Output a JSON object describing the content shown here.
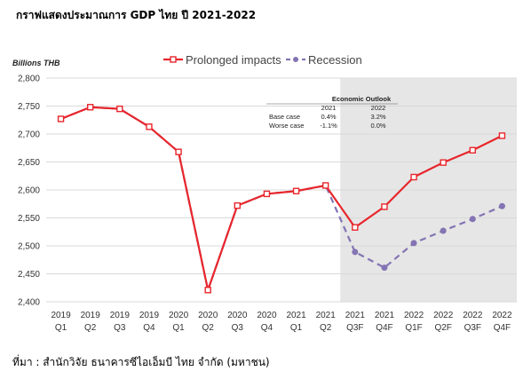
{
  "title": "กราฟแสดงประมาณการ GDP ไทย ปี 2021-2022",
  "source": "ที่มา : สำนักวิจัย ธนาคารซีไอเอ็มบี ไทย จำกัด (มหาชน)",
  "chart_data": {
    "type": "line",
    "ylabel": "Billions THB",
    "xlabel": "",
    "ylim": [
      2400,
      2800
    ],
    "yticks": [
      2400,
      2450,
      2500,
      2550,
      2600,
      2650,
      2700,
      2750,
      2800
    ],
    "ytick_labels": [
      "2,400",
      "2,450",
      "2,500",
      "2,550",
      "2,600",
      "2,650",
      "2,700",
      "2,750",
      "2,800"
    ],
    "grid": "horizontal",
    "legend_position": "top-right",
    "categories": [
      [
        "2019",
        "Q1"
      ],
      [
        "2019",
        "Q2"
      ],
      [
        "2019",
        "Q3"
      ],
      [
        "2019",
        "Q4"
      ],
      [
        "2020",
        "Q1"
      ],
      [
        "2020",
        "Q2"
      ],
      [
        "2020",
        "Q3"
      ],
      [
        "2020",
        "Q4"
      ],
      [
        "2021",
        "Q1"
      ],
      [
        "2021",
        "Q2"
      ],
      [
        "2021",
        "Q3F"
      ],
      [
        "2021",
        "Q4F"
      ],
      [
        "2022",
        "Q1F"
      ],
      [
        "2022",
        "Q2F"
      ],
      [
        "2022",
        "Q3F"
      ],
      [
        "2022",
        "Q4F"
      ]
    ],
    "forecast_region": {
      "from_category": "2021 Q3F",
      "to_category": "2022 Q4F"
    },
    "series": [
      {
        "name": "Prolonged impacts",
        "color": "#e8262c",
        "style": "solid",
        "marker": "square",
        "values": [
          2727,
          2748,
          2745,
          2713,
          2668,
          2421,
          2572,
          2593,
          2598,
          2608,
          2533,
          2570,
          2623,
          2649,
          2671,
          2697
        ]
      },
      {
        "name": "Recession",
        "color": "#8474b3",
        "style": "dashed",
        "marker": "circle",
        "values": [
          2727,
          2748,
          2745,
          2713,
          2668,
          2421,
          2572,
          2593,
          2598,
          2608,
          2489,
          2461,
          2505,
          2527,
          2548,
          2571
        ]
      }
    ],
    "annotation_table": {
      "title": "Economic Outlook",
      "header": [
        "",
        "2021",
        "2022"
      ],
      "rows": [
        [
          "Base case",
          "0.4%",
          "3.2%"
        ],
        [
          "Worse case",
          "-1.1%",
          "0.0%"
        ]
      ]
    }
  }
}
